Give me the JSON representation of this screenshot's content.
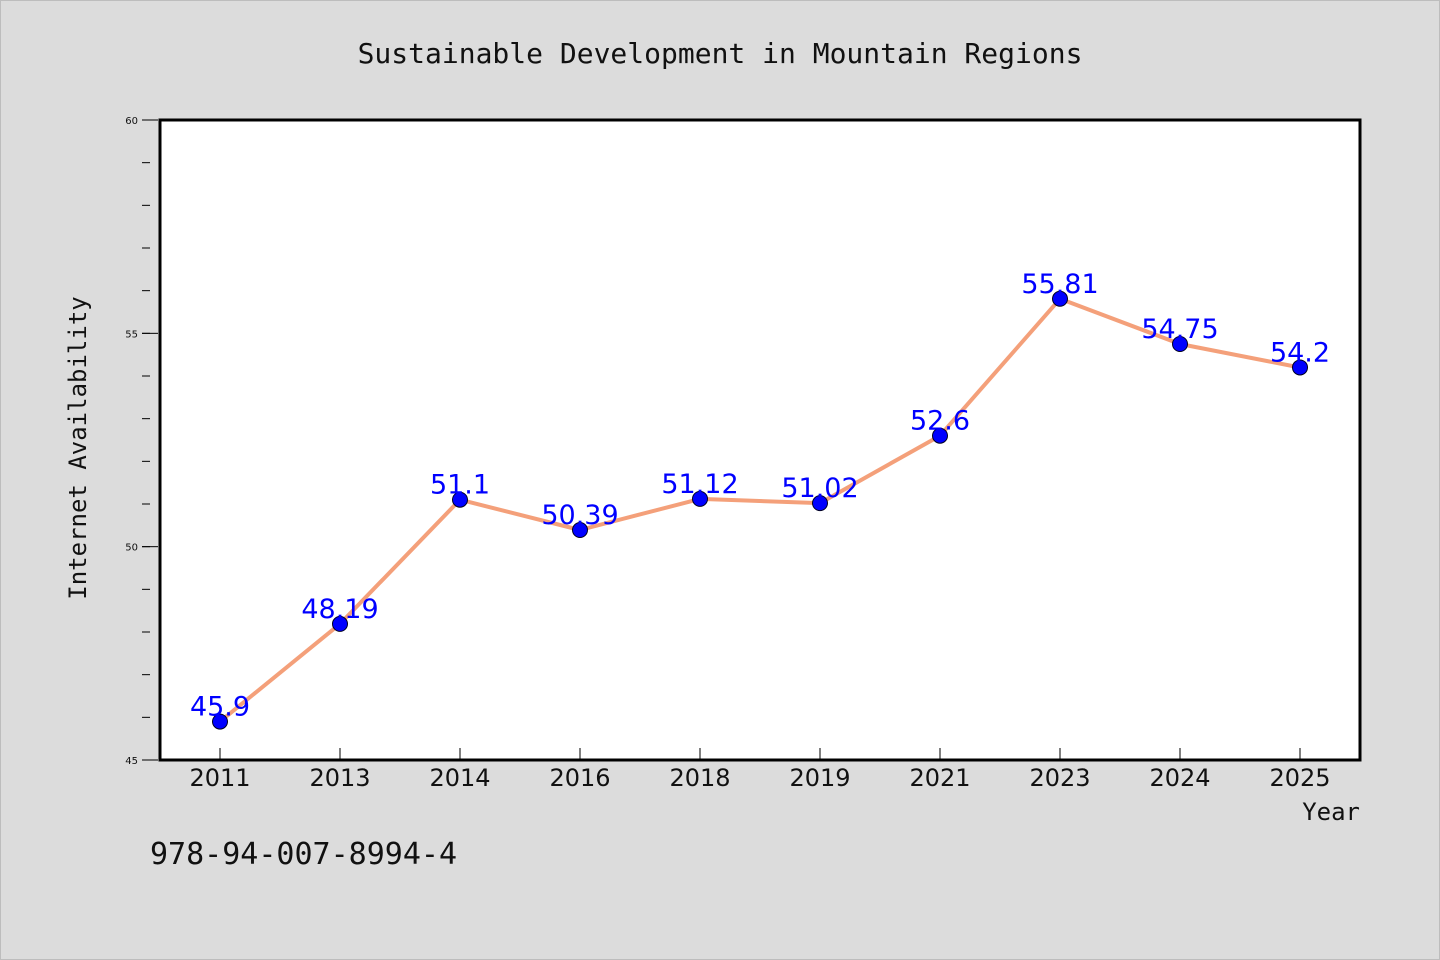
{
  "chart_data": {
    "type": "line",
    "title": "Sustainable Development in Mountain Regions",
    "xlabel": "Year",
    "ylabel": "Internet Availability",
    "categories": [
      "2011",
      "2013",
      "2014",
      "2016",
      "2018",
      "2019",
      "2021",
      "2023",
      "2024",
      "2025"
    ],
    "series": [
      {
        "values": [
          45.9,
          48.19,
          51.1,
          50.39,
          51.12,
          51.02,
          52.6,
          55.81,
          54.75,
          54.2
        ],
        "data_labels": [
          "45.9",
          "48.19",
          "51.1",
          "50.39",
          "51.12",
          "51.02",
          "52.6",
          "55.81",
          "54.75",
          "54.2"
        ],
        "line_color": "#f4a07a",
        "marker_color": "#0000ff"
      }
    ],
    "ylim": [
      45,
      60
    ],
    "yticks": [
      "45",
      "50",
      "55",
      "60"
    ],
    "grid": false,
    "legend": "none",
    "label_color": "#0000ff"
  },
  "footer": {
    "identifier": "978-94-007-8994-4"
  },
  "colors": {
    "background": "#dcdcdc",
    "plot_background": "#ffffff",
    "axis": "#000000"
  }
}
